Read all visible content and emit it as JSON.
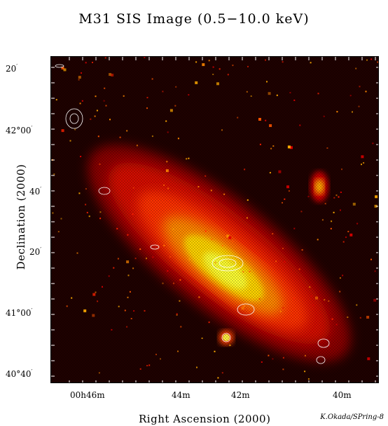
{
  "title": "M31 SIS Image (0.5−10.0 keV)",
  "axes": {
    "ylabel": "Declination (2000)",
    "xlabel": "Right Ascension (2000)",
    "yticks": [
      {
        "main": "20",
        "sup": "′"
      },
      {
        "main": "42°00",
        "sup": "′"
      },
      {
        "main": "40",
        "sup": "′"
      },
      {
        "main": "20",
        "sup": "′"
      },
      {
        "main": "41°00",
        "sup": "′"
      },
      {
        "main": "40°40",
        "sup": "′"
      }
    ],
    "xticks": [
      {
        "text": "00h46m"
      },
      {
        "text": "44m"
      },
      {
        "text": "42m"
      },
      {
        "text": "40m"
      }
    ]
  },
  "credit": "K.Okada/SPring-8",
  "colors": {
    "background": "#1a0000",
    "halo": "#c40000",
    "body": "#ff2a00",
    "mid": "#ff8c00",
    "core": "#ffff00",
    "contour": "#ffffff"
  }
}
